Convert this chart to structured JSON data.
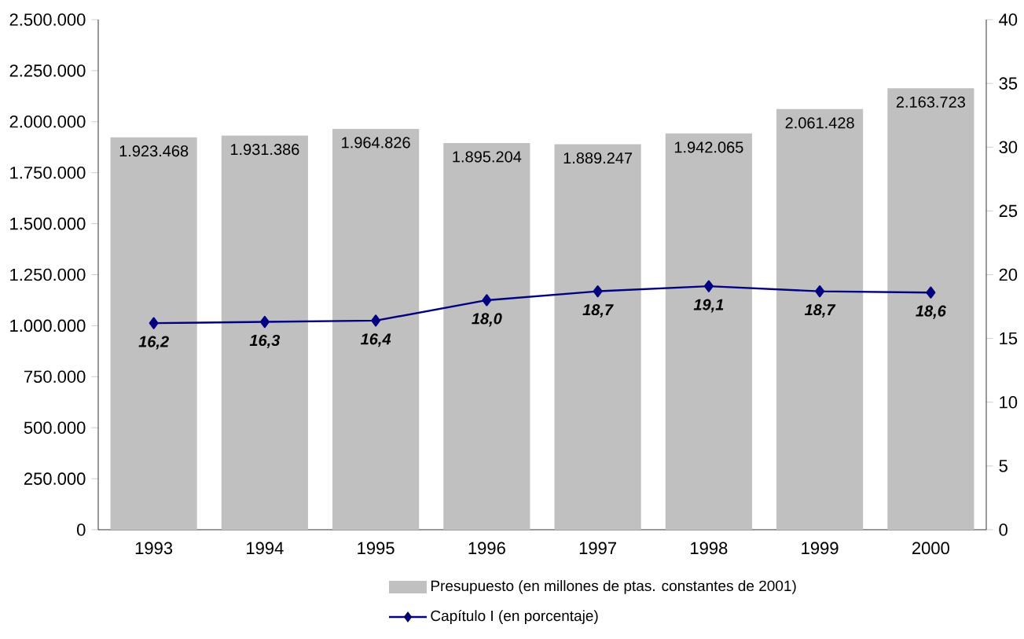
{
  "chart_data": {
    "type": "bar",
    "categories": [
      "1993",
      "1994",
      "1995",
      "1996",
      "1997",
      "1998",
      "1999",
      "2000"
    ],
    "series": [
      {
        "name": "Presupuesto (en millones de ptas. constantes de 2001)",
        "color": "#c0c0c0",
        "values": [
          1923468,
          1931386,
          1964826,
          1895204,
          1889247,
          1942065,
          2061428,
          2163723
        ],
        "value_labels": [
          "1.923.468",
          "1.931.386",
          "1.964.826",
          "1.895.204",
          "1.889.247",
          "1.942.065",
          "2.061.428",
          "2.163.723"
        ]
      },
      {
        "name": "Capítulo I (en porcentaje)",
        "type": "line",
        "axis": "y2",
        "color": "#000080",
        "values": [
          16.2,
          16.3,
          16.4,
          18.0,
          18.7,
          19.1,
          18.7,
          18.6
        ],
        "value_labels": [
          "16,2",
          "16,3",
          "16,4",
          "18,0",
          "18,7",
          "19,1",
          "18,7",
          "18,6"
        ]
      }
    ],
    "ylim": [
      0,
      2500000
    ],
    "yticks": [
      {
        "value": 0,
        "label": "0"
      },
      {
        "value": 250000,
        "label": "250.000"
      },
      {
        "value": 500000,
        "label": "500.000"
      },
      {
        "value": 750000,
        "label": "750.000"
      },
      {
        "value": 1000000,
        "label": "1.000.000"
      },
      {
        "value": 1250000,
        "label": "1.250.000"
      },
      {
        "value": 1500000,
        "label": "1.500.000"
      },
      {
        "value": 1750000,
        "label": "1.750.000"
      },
      {
        "value": 2000000,
        "label": "2.000.000"
      },
      {
        "value": 2250000,
        "label": "2.250.000"
      },
      {
        "value": 2500000,
        "label": "2.500.000"
      }
    ],
    "y2lim": [
      0,
      40
    ],
    "y2ticks": [
      0,
      5,
      10,
      15,
      20,
      25,
      30,
      35,
      40
    ],
    "marker": "diamond",
    "line_style": "solid",
    "legend": "bottom",
    "grid": false
  }
}
